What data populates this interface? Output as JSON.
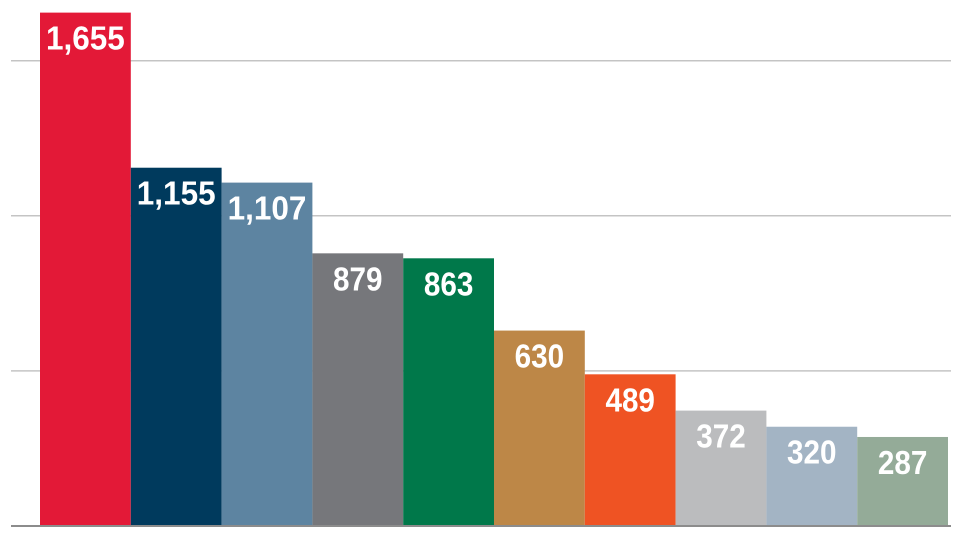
{
  "chart_data": {
    "type": "bar",
    "categories": [
      "",
      "",
      "",
      "",
      "",
      "",
      "",
      "",
      "",
      ""
    ],
    "values": [
      1655,
      1155,
      1107,
      879,
      863,
      630,
      489,
      372,
      320,
      287
    ],
    "value_labels": [
      "1,655",
      "1,155",
      "1,107",
      "879",
      "863",
      "630",
      "489",
      "372",
      "320",
      "287"
    ],
    "colors": [
      "#e31937",
      "#003a5d",
      "#5d84a1",
      "#76777b",
      "#00784a",
      "#bd8747",
      "#ef5323",
      "#bbbcbe",
      "#a3b4c4",
      "#94ab98"
    ],
    "title": "",
    "xlabel": "",
    "ylabel": "",
    "ylim": [
      0,
      1700
    ],
    "grid": true,
    "gridline_values": [
      500,
      1000,
      1500
    ],
    "legend": "none"
  }
}
